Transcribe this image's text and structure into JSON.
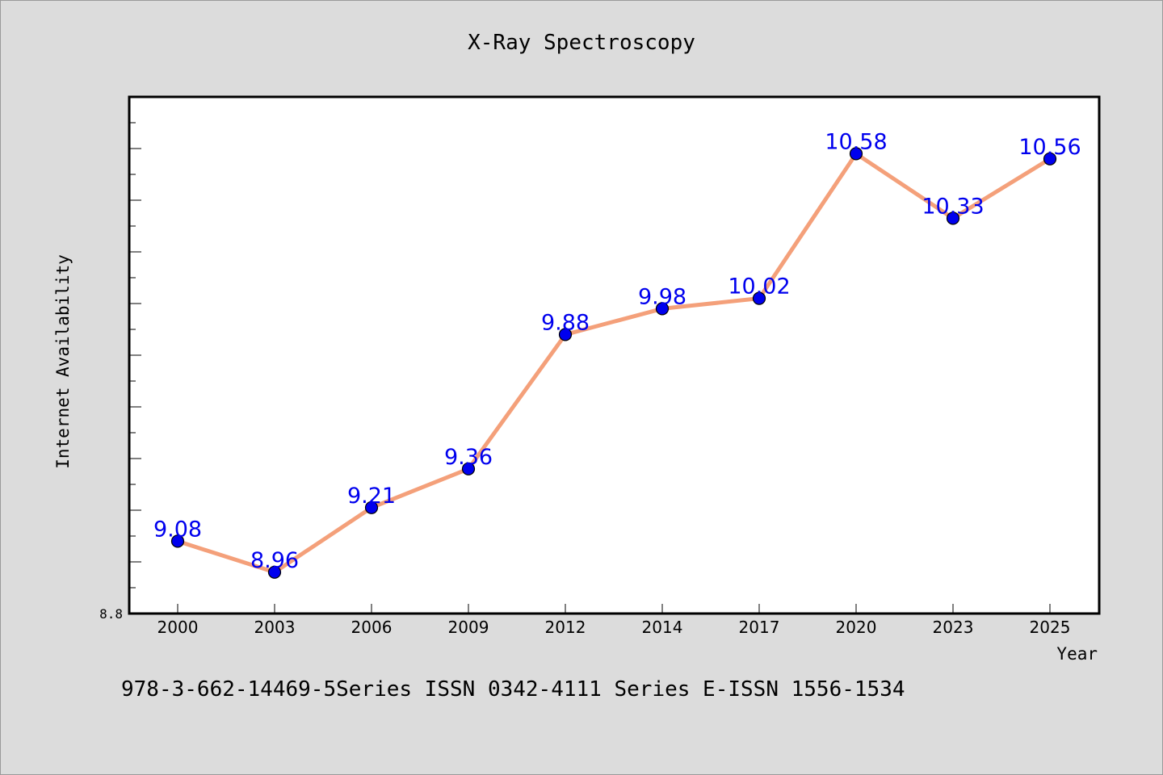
{
  "chart_data": {
    "type": "line",
    "title": "X-Ray Spectroscopy",
    "xlabel": "Year",
    "ylabel": "Internet Availability",
    "categories": [
      "2000",
      "2003",
      "2006",
      "2009",
      "2012",
      "2014",
      "2017",
      "2020",
      "2023",
      "2025"
    ],
    "values": [
      9.08,
      8.96,
      9.21,
      9.36,
      9.88,
      9.98,
      10.02,
      10.58,
      10.33,
      10.56
    ],
    "data_labels": [
      "9.08",
      "8.96",
      "9.21",
      "9.36",
      "9.88",
      "9.98",
      "10.02",
      "10.58",
      "10.33",
      "10.56"
    ],
    "ylim": [
      8.8,
      10.8
    ],
    "y_tick_labels": [
      "8.8"
    ],
    "grid": false,
    "legend": "none",
    "colors": {
      "line": "#f4a07a",
      "marker": "#0000ee",
      "data_label": "#0000ee",
      "plot_background": "#ffffff",
      "figure_background": "#dcdcdc"
    }
  },
  "footer": {
    "text": "978-3-662-14469-5Series ISSN 0342-4111 Series E-ISSN 1556-1534"
  }
}
